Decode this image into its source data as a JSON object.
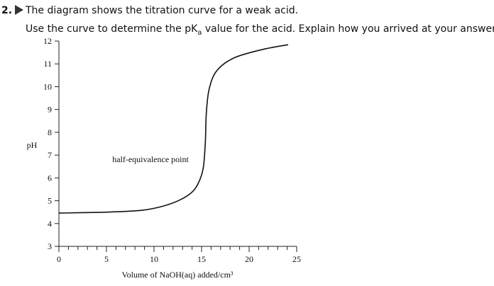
{
  "question": {
    "number": "2.",
    "line1": "The diagram shows the titration curve for a weak acid.",
    "line2": [
      "Use the curve to determine the pK",
      "a",
      " value for the acid. Explain how you arrived at your answer."
    ]
  },
  "chart_data": {
    "type": "line",
    "x_label": "Volume of NaOH(aq) added/cm³",
    "y_label": "pH",
    "annotation": "half-equivalence point",
    "xlim": [
      0,
      25
    ],
    "xticks": [
      0,
      5,
      10,
      15,
      20,
      25
    ],
    "x_minor_step": 1,
    "ylim": [
      3,
      12
    ],
    "yticks": [
      3,
      4,
      5,
      6,
      7,
      8,
      9,
      10,
      11,
      12
    ],
    "series": [
      {
        "color": "#111111",
        "x": [
          0,
          5,
          8.7,
          11,
          12.8,
          14.1,
          14.8,
          15.2,
          15.4,
          15.5,
          15.8,
          16.6,
          18.4,
          21.4,
          24.1
        ],
        "values": [
          4.46,
          4.5,
          4.58,
          4.77,
          5.05,
          5.42,
          5.9,
          6.5,
          7.6,
          8.84,
          9.9,
          10.7,
          11.26,
          11.63,
          11.84
        ]
      }
    ]
  }
}
